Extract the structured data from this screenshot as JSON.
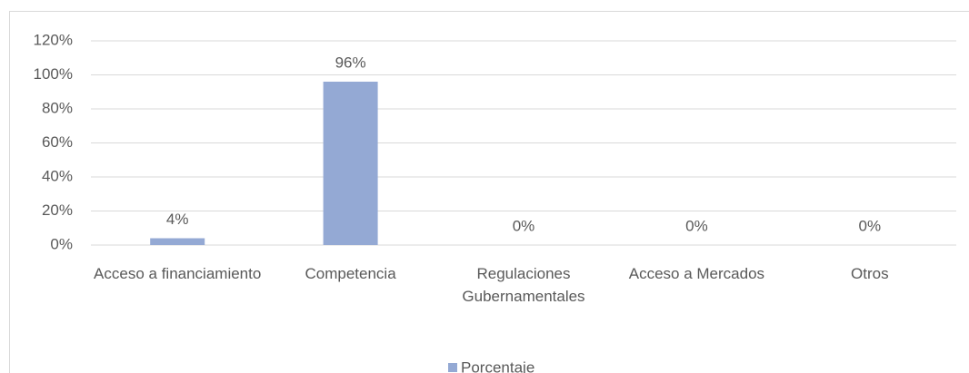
{
  "chart_data": {
    "type": "bar",
    "categories": [
      "Acceso a financiamiento",
      "Competencia",
      "Regulaciones Gubernamentales",
      "Acceso a Mercados",
      "Otros"
    ],
    "series": [
      {
        "name": "Porcentaje",
        "color": "#94a9d4",
        "values": [
          4,
          96,
          0,
          0,
          0
        ],
        "value_labels": [
          "4%",
          "96%",
          "0%",
          "0%",
          "0%"
        ]
      }
    ],
    "ylim": [
      0,
      120
    ],
    "yticks": [
      {
        "value": 0,
        "label": "0%"
      },
      {
        "value": 20,
        "label": "20%"
      },
      {
        "value": 40,
        "label": "40%"
      },
      {
        "value": 60,
        "label": "60%"
      },
      {
        "value": 80,
        "label": "80%"
      },
      {
        "value": 100,
        "label": "100%"
      },
      {
        "value": 120,
        "label": "120%"
      }
    ],
    "grid": true,
    "legend": "bottom"
  }
}
